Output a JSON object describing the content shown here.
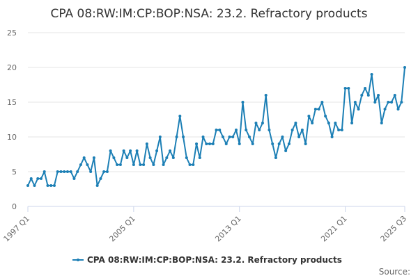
{
  "chart_data": {
    "type": "line",
    "title": "CPA 08:RW:IM:CP:BOP:NSA: 23.2. Refractory products",
    "xlabel": "",
    "ylabel": "",
    "ylim": [
      0,
      25
    ],
    "yticks": [
      0,
      5,
      10,
      15,
      20,
      25
    ],
    "x_ticks": [
      {
        "label": "1997 Q1",
        "index": 0
      },
      {
        "label": "2005 Q1",
        "index": 32
      },
      {
        "label": "2013 Q1",
        "index": 64
      },
      {
        "label": "2021 Q1",
        "index": 96
      },
      {
        "label": "2025 Q3",
        "index": 114
      }
    ],
    "grid": true,
    "legend_position": "bottom",
    "credit": "Source:",
    "series": [
      {
        "name": "CPA 08:RW:IM:CP:BOP:NSA: 23.2. Refractory products",
        "color": "#1c7fb5",
        "start": "1997 Q1",
        "values": [
          3,
          4,
          3,
          4,
          4,
          5,
          3,
          3,
          3,
          5,
          5,
          5,
          5,
          5,
          4,
          5,
          6,
          7,
          6,
          5,
          7,
          3,
          4,
          5,
          5,
          8,
          7,
          6,
          6,
          8,
          7,
          8,
          6,
          8,
          6,
          6,
          9,
          7,
          6,
          8,
          10,
          6,
          7,
          8,
          7,
          10,
          13,
          10,
          7,
          6,
          6,
          9,
          7,
          10,
          9,
          9,
          9,
          11,
          11,
          10,
          9,
          10,
          10,
          11,
          9,
          15,
          11,
          10,
          9,
          12,
          11,
          12,
          16,
          11,
          9,
          7,
          9,
          10,
          8,
          9,
          11,
          12,
          10,
          11,
          9,
          13,
          12,
          14,
          14,
          15,
          13,
          12,
          10,
          12,
          11,
          11,
          17,
          17,
          12,
          15,
          14,
          16,
          17,
          16,
          19,
          15,
          16,
          12,
          14,
          15,
          15,
          16,
          14,
          15,
          20
        ]
      }
    ]
  }
}
